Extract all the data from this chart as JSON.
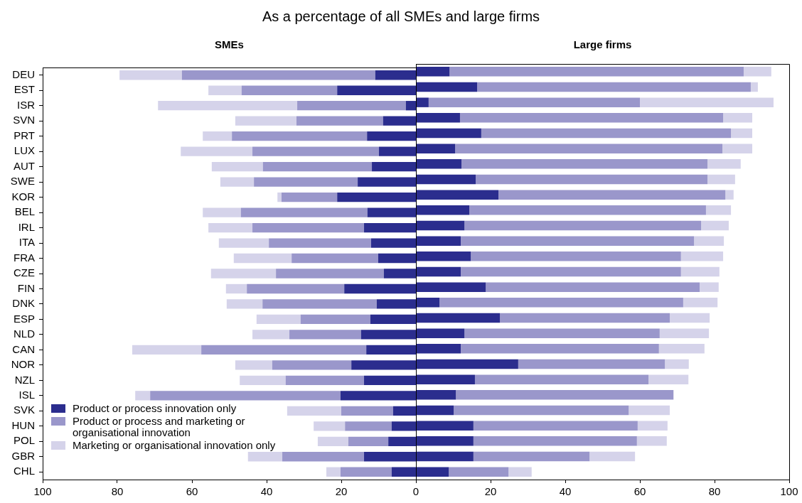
{
  "chart_data": [
    {
      "type": "bar",
      "orientation": "horizontal",
      "stacked": true,
      "title": "As a percentage of all SMEs and large firms",
      "subtitle": "SMEs",
      "legend": "bottom left",
      "grid": false,
      "categories": [
        "DEU",
        "EST",
        "ISR",
        "SVN",
        "PRT",
        "LUX",
        "AUT",
        "SWE",
        "KOR",
        "BEL",
        "IRL",
        "ITA",
        "FRA",
        "CZE",
        "FIN",
        "DNK",
        "ESP",
        "NLD",
        "CAN",
        "NOR",
        "NZL",
        "ISL",
        "SVK",
        "HUN",
        "POL",
        "GBR",
        "CHL"
      ],
      "xlim": [
        100,
        0
      ],
      "xticks": [
        100,
        80,
        60,
        40,
        20
      ],
      "series": [
        {
          "name": "Product or process innovation only",
          "color": "#2b2d8e",
          "values": [
            10.9,
            21.1,
            2.7,
            8.8,
            13.1,
            9.9,
            11.8,
            15.6,
            21.1,
            13.0,
            13.9,
            12.0,
            10.1,
            8.6,
            19.2,
            10.5,
            12.2,
            14.7,
            13.3,
            17.3,
            13.9,
            20.2,
            6.1,
            6.5,
            7.4,
            13.9,
            6.5
          ]
        },
        {
          "name": "Product or process and marketing or organisational innovation",
          "color": "#9a97cb",
          "values": [
            51.8,
            25.6,
            29.1,
            23.2,
            36.2,
            33.9,
            29.2,
            27.8,
            14.9,
            33.9,
            29.9,
            27.4,
            23.2,
            28.9,
            26.1,
            30.6,
            18.7,
            19.2,
            44.2,
            21.2,
            21.0,
            51.0,
            13.9,
            12.5,
            10.7,
            21.9,
            13.7
          ]
        },
        {
          "name": "Marketing or organisational innovation only",
          "color": "#d5d3ea",
          "values": [
            16.7,
            8.9,
            37.3,
            16.4,
            7.8,
            19.2,
            13.7,
            9.0,
            1.1,
            10.2,
            11.8,
            13.4,
            15.5,
            17.4,
            5.6,
            9.6,
            11.8,
            9.9,
            18.5,
            9.9,
            12.3,
            4.0,
            14.5,
            8.4,
            8.2,
            9.2,
            3.8
          ]
        }
      ]
    },
    {
      "type": "bar",
      "orientation": "horizontal",
      "stacked": true,
      "subtitle": "Large firms",
      "grid": false,
      "tick_labels": "x",
      "xlim": [
        0,
        100
      ],
      "xticks": [
        0,
        20,
        40,
        60,
        80,
        100
      ],
      "series": [
        {
          "color": "#2b2d8e",
          "values": [
            9.0,
            16.4,
            3.4,
            11.8,
            17.5,
            10.5,
            12.2,
            16.0,
            22.1,
            14.3,
            13.0,
            12.0,
            14.7,
            12.0,
            18.7,
            6.3,
            22.5,
            13.0,
            12.0,
            27.4,
            15.8,
            10.7,
            10.1,
            15.4,
            15.4,
            15.4,
            8.8
          ]
        },
        {
          "color": "#9a97cb",
          "values": [
            78.8,
            73.3,
            56.6,
            70.5,
            66.9,
            71.6,
            65.9,
            62.1,
            60.8,
            63.4,
            63.4,
            62.5,
            56.3,
            59.0,
            57.3,
            65.3,
            45.5,
            52.3,
            53.1,
            39.3,
            46.5,
            58.3,
            46.9,
            44.0,
            43.8,
            31.1,
            16.0
          ]
        },
        {
          "color": "#d5d3ea",
          "values": [
            7.4,
            1.9,
            35.8,
            7.8,
            5.7,
            8.0,
            8.9,
            7.4,
            2.2,
            6.7,
            7.4,
            8.0,
            11.3,
            10.3,
            5.1,
            9.2,
            10.7,
            13.2,
            12.2,
            6.4,
            10.7,
            null,
            11.0,
            8.0,
            8.0,
            12.2,
            6.2
          ]
        }
      ]
    }
  ]
}
